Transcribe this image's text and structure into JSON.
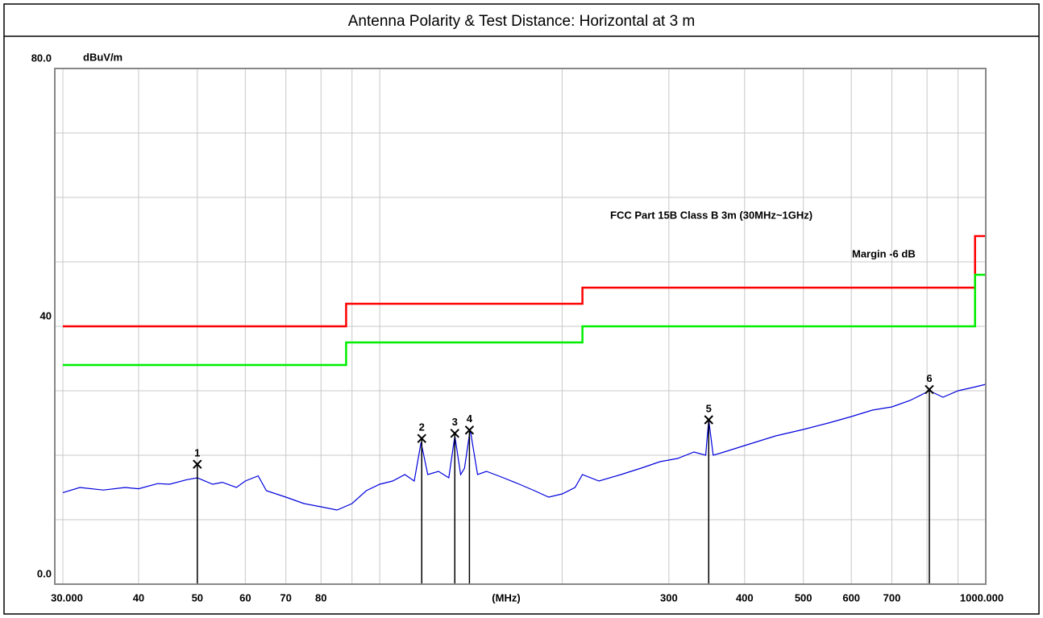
{
  "chart_data": {
    "type": "line",
    "title": "Antenna Polarity & Test Distance: Horizontal at 3 m",
    "y_label": "dBuV/m",
    "x_label": "(MHz)",
    "xscale": "log",
    "xlim": [
      30,
      1000
    ],
    "ylim": [
      0,
      80
    ],
    "xticks": [
      {
        "value": 30,
        "label": "30.000"
      },
      40,
      50,
      60,
      70,
      80,
      300,
      400,
      500,
      600,
      700,
      {
        "value": 1000,
        "label": "1000.000"
      }
    ],
    "xgrid": [
      90,
      100,
      200,
      800,
      900
    ],
    "yticks": [
      {
        "value": 0,
        "label": "0.0"
      },
      40,
      {
        "value": 80,
        "label": "80.0"
      }
    ],
    "ygrid": [
      10,
      20,
      30,
      50,
      60,
      70
    ],
    "grid": true,
    "series": [
      {
        "name": "FCC Part 15B Class B 3m (30MHz~1GHz)",
        "color": "#ff0000",
        "x": [
          30,
          88,
          88,
          216,
          216,
          960,
          960,
          1000
        ],
        "values": [
          40,
          40,
          43.5,
          43.5,
          46,
          46,
          54,
          54
        ]
      },
      {
        "name": "Margin -6 dB",
        "color": "#00ee00",
        "x": [
          30,
          88,
          88,
          216,
          216,
          960,
          960,
          1000
        ],
        "values": [
          34,
          34,
          37.5,
          37.5,
          40,
          40,
          48,
          48
        ]
      },
      {
        "color": "#0000dd",
        "x": [
          30,
          32,
          35,
          38,
          40,
          43,
          45,
          48,
          50,
          53,
          55,
          58,
          60,
          63,
          65,
          70,
          75,
          80,
          85,
          90,
          95,
          100,
          105,
          110,
          114,
          117,
          120,
          125,
          130,
          133,
          136,
          138,
          141,
          145,
          150,
          160,
          170,
          180,
          190,
          200,
          210,
          216,
          230,
          250,
          270,
          290,
          310,
          330,
          345,
          349,
          355,
          370,
          400,
          450,
          500,
          550,
          600,
          650,
          700,
          750,
          807,
          850,
          900,
          950,
          1000
        ],
        "values": [
          14.2,
          15,
          14.6,
          15,
          14.8,
          15.6,
          15.5,
          16.2,
          16.5,
          15.5,
          15.8,
          15,
          16,
          16.8,
          14.5,
          13.5,
          12.5,
          12,
          11.5,
          12.5,
          14.5,
          15.5,
          16,
          17,
          16,
          22,
          17,
          17.5,
          16.5,
          23,
          17,
          18,
          24,
          17,
          17.5,
          16.5,
          15.5,
          14.5,
          13.5,
          14,
          15,
          17,
          16,
          17,
          18,
          19,
          19.5,
          20.5,
          20,
          25.5,
          20,
          20.5,
          21.5,
          23,
          24,
          25,
          26,
          27,
          27.5,
          28.5,
          30,
          29,
          30,
          30.5,
          31
        ]
      }
    ],
    "markers": {
      "labels": [
        "1",
        "2",
        "3",
        "4",
        "5",
        "6"
      ],
      "x": [
        50,
        117.3,
        133,
        140.6,
        349,
        807
      ],
      "values": [
        18.6,
        22.6,
        23.4,
        23.9,
        25.5,
        30.2
      ],
      "color": "#000000"
    }
  }
}
